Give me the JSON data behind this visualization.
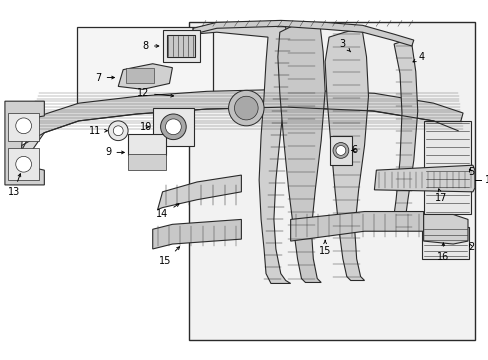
{
  "bg_color": "#ffffff",
  "fig_width": 4.89,
  "fig_height": 3.6,
  "dpi": 100,
  "line_color": "#2a2a2a",
  "fill_light": "#e8e8e8",
  "fill_mid": "#d0d0d0",
  "fill_dark": "#b8b8b8",
  "font_size": 7.0,
  "lw_main": 0.8,
  "lw_thin": 0.4,
  "lw_thick": 1.1
}
